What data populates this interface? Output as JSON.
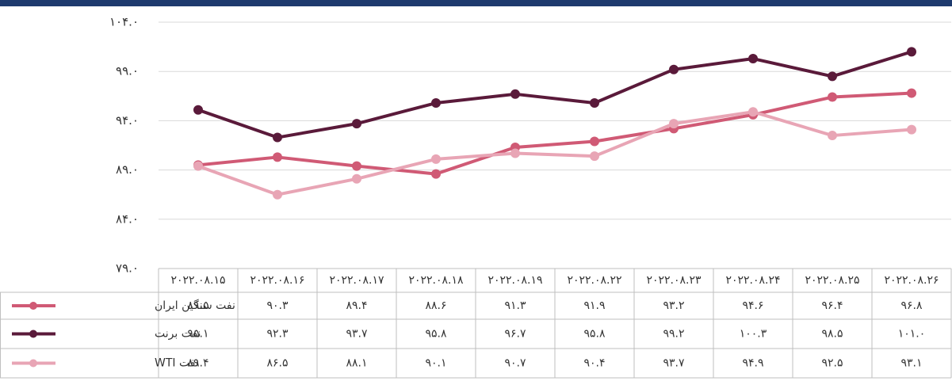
{
  "chart_data": {
    "type": "line",
    "categories": [
      "۲۰۲۲.۰۸.۱۵",
      "۲۰۲۲.۰۸.۱۶",
      "۲۰۲۲.۰۸.۱۷",
      "۲۰۲۲.۰۸.۱۸",
      "۲۰۲۲.۰۸.۱۹",
      "۲۰۲۲.۰۸.۲۲",
      "۲۰۲۲.۰۸.۲۳",
      "۲۰۲۲.۰۸.۲۴",
      "۲۰۲۲.۰۸.۲۵",
      "۲۰۲۲.۰۸.۲۶"
    ],
    "series": [
      {
        "name": "نفت سنگین ایران",
        "color": "#d05a75",
        "values": [
          89.5,
          90.3,
          89.4,
          88.6,
          91.3,
          91.9,
          93.2,
          94.6,
          96.4,
          96.8
        ],
        "value_labels": [
          "۸۹.۵",
          "۹۰.۳",
          "۸۹.۴",
          "۸۸.۶",
          "۹۱.۳",
          "۹۱.۹",
          "۹۳.۲",
          "۹۴.۶",
          "۹۶.۴",
          "۹۶.۸"
        ]
      },
      {
        "name": "نفت برنت",
        "color": "#5a1a3a",
        "values": [
          95.1,
          92.3,
          93.7,
          95.8,
          96.7,
          95.8,
          99.2,
          100.3,
          98.5,
          101.0
        ],
        "value_labels": [
          "۹۵.۱",
          "۹۲.۳",
          "۹۳.۷",
          "۹۵.۸",
          "۹۶.۷",
          "۹۵.۸",
          "۹۹.۲",
          "۱۰۰.۳",
          "۹۸.۵",
          "۱۰۱.۰"
        ]
      },
      {
        "name": "نفت WTI",
        "color": "#e8a5b5",
        "values": [
          89.4,
          86.5,
          88.1,
          90.1,
          90.7,
          90.4,
          93.7,
          94.9,
          92.5,
          93.1
        ],
        "value_labels": [
          "۸۹.۴",
          "۸۶.۵",
          "۸۸.۱",
          "۹۰.۱",
          "۹۰.۷",
          "۹۰.۴",
          "۹۳.۷",
          "۹۴.۹",
          "۹۲.۵",
          "۹۳.۱"
        ]
      }
    ],
    "ylim": [
      79,
      104
    ],
    "yticks": [
      {
        "value": 79,
        "label": "۷۹.۰"
      },
      {
        "value": 84,
        "label": "۸۴.۰"
      },
      {
        "value": 89,
        "label": "۸۹.۰"
      },
      {
        "value": 94,
        "label": "۹۴.۰"
      },
      {
        "value": 99,
        "label": "۹۹.۰"
      },
      {
        "value": 104,
        "label": "۱۰۴.۰"
      }
    ],
    "grid": true
  }
}
